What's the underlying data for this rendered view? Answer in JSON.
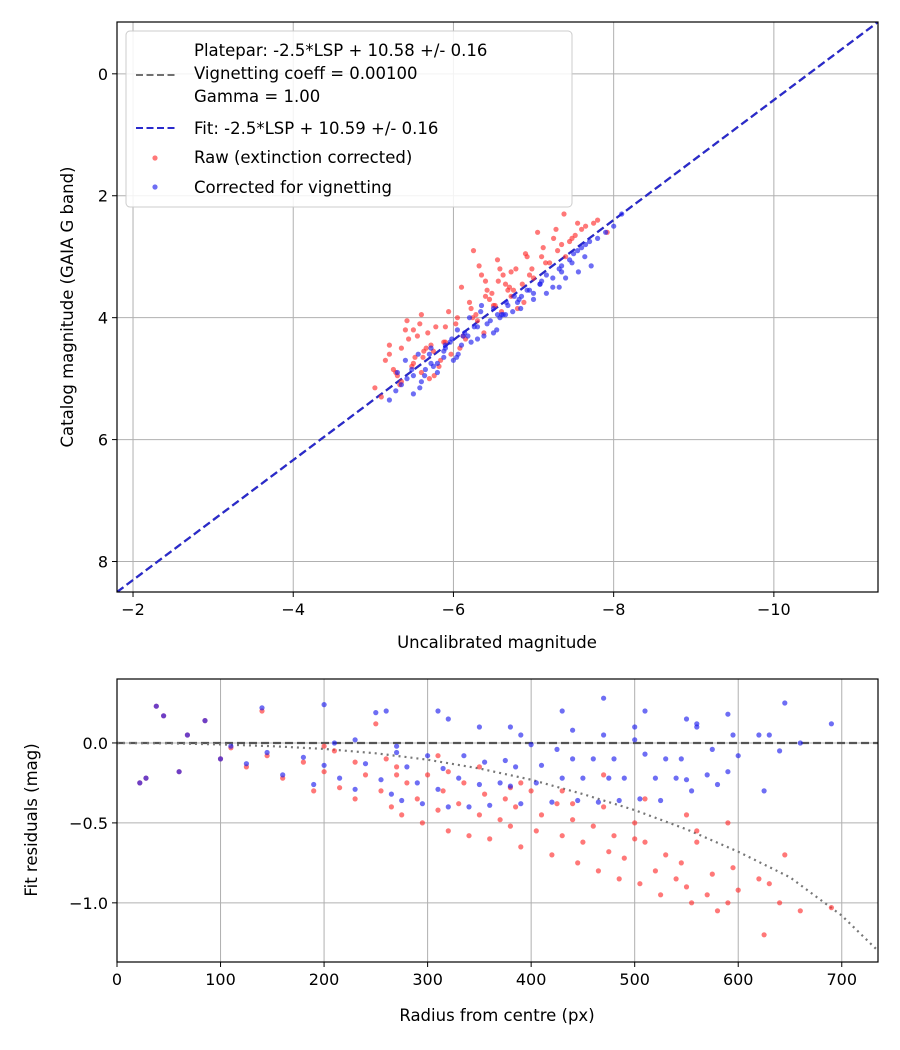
{
  "chart_data": [
    {
      "type": "scatter",
      "xlabel": "Uncalibrated magnitude",
      "ylabel": "Catalog magnitude (GAIA G band)",
      "xlim": [
        -1.8,
        -11.3
      ],
      "ylim": [
        8.5,
        -0.85
      ],
      "x_ticks": [
        -2,
        -4,
        -6,
        -8,
        -10
      ],
      "y_ticks": [
        0,
        2,
        4,
        6,
        8
      ],
      "x_tick_labels": [
        "−2",
        "−4",
        "−6",
        "−8",
        "−10"
      ],
      "y_tick_labels": [
        "0",
        "2",
        "4",
        "6",
        "8"
      ],
      "grid": true,
      "legend_position": "upper-left",
      "legend": [
        "Platepar: -2.5*LSP + 10.58 +/- 0.16",
        "Vignetting coeff = 0.00100",
        "Gamma = 1.00",
        "Fit: -2.5*LSP + 10.59 +/- 0.16",
        "Raw (extinction corrected)",
        "Corrected for vignetting"
      ],
      "lines": [
        {
          "name": "Platepar",
          "style": "dashed",
          "color": "#707070",
          "x": [
            -1.8,
            -11.3
          ],
          "y": [
            8.5,
            -0.85
          ]
        },
        {
          "name": "Fit",
          "style": "dashed",
          "color": "#2a2acc",
          "x": [
            -1.8,
            -11.3
          ],
          "y": [
            8.5,
            -0.85
          ]
        }
      ],
      "series": [
        {
          "name": "Raw (extinction corrected)",
          "color": "#ff3030",
          "x": [
            -5.02,
            -5.1,
            -5.2,
            -5.28,
            -5.35,
            -5.4,
            -5.5,
            -5.58,
            -5.63,
            -5.7,
            -5.2,
            -5.25,
            -5.33,
            -5.44,
            -5.52,
            -5.6,
            -5.68,
            -5.75,
            -5.82,
            -5.9,
            -5.15,
            -5.3,
            -5.42,
            -5.55,
            -5.66,
            -5.78,
            -5.88,
            -5.97,
            -6.05,
            -6.12,
            -5.5,
            -5.6,
            -5.72,
            -5.84,
            -5.94,
            -6.03,
            -6.15,
            -6.22,
            -6.3,
            -6.38,
            -6.1,
            -6.2,
            -6.28,
            -6.35,
            -6.42,
            -6.5,
            -6.58,
            -6.65,
            -6.72,
            -6.8,
            -6.25,
            -6.32,
            -6.4,
            -6.48,
            -6.55,
            -6.62,
            -6.7,
            -6.78,
            -6.86,
            -6.92,
            -6.9,
            -6.98,
            -7.05,
            -7.12,
            -7.2,
            -7.28,
            -7.35,
            -7.4,
            -7.48,
            -7.55,
            -6.45,
            -6.6,
            -6.75,
            -6.88,
            -7.0,
            -7.15,
            -7.3,
            -7.45,
            -7.6,
            -7.75,
            -5.35,
            -5.48,
            -5.62,
            -5.76,
            -5.9,
            -6.08,
            -6.24,
            -6.4,
            -6.56,
            -6.72,
            -7.38,
            -7.52,
            -7.65,
            -7.8,
            -7.92,
            -7.1,
            -7.25,
            -6.95,
            -6.68,
            -6.52
          ],
          "y": [
            5.15,
            5.3,
            4.6,
            4.9,
            4.5,
            4.2,
            4.75,
            4.1,
            4.55,
            5.0,
            4.45,
            4.85,
            5.1,
            4.35,
            4.65,
            4.9,
            4.25,
            4.55,
            4.8,
            4.4,
            4.7,
            4.95,
            4.05,
            4.3,
            4.5,
            4.15,
            4.4,
            4.6,
            4.0,
            4.3,
            4.2,
            3.95,
            4.45,
            4.7,
            3.9,
            4.1,
            4.35,
            3.85,
            4.05,
            4.25,
            3.5,
            3.75,
            3.95,
            3.3,
            3.55,
            3.8,
            3.2,
            3.45,
            3.65,
            3.85,
            2.9,
            3.15,
            3.4,
            3.6,
            3.05,
            3.3,
            3.5,
            3.2,
            3.45,
            3.0,
            2.95,
            3.2,
            2.6,
            2.85,
            3.1,
            2.55,
            2.8,
            3.0,
            2.7,
            2.45,
            3.7,
            3.9,
            3.55,
            3.75,
            3.35,
            3.1,
            2.9,
            2.75,
            2.55,
            2.45,
            5.05,
            4.8,
            4.65,
            4.95,
            4.15,
            4.5,
            4.0,
            3.65,
            3.4,
            3.25,
            2.3,
            2.65,
            2.5,
            2.4,
            2.6,
            3.0,
            2.7,
            3.3,
            3.55,
            3.8
          ]
        },
        {
          "name": "Corrected for vignetting",
          "color": "#2020ee",
          "x": [
            -5.2,
            -5.28,
            -5.35,
            -5.42,
            -5.5,
            -5.58,
            -5.65,
            -5.72,
            -5.8,
            -5.88,
            -5.4,
            -5.48,
            -5.56,
            -5.64,
            -5.72,
            -5.8,
            -5.88,
            -5.96,
            -6.04,
            -6.12,
            -5.9,
            -5.98,
            -6.06,
            -6.14,
            -6.22,
            -6.3,
            -6.38,
            -6.46,
            -6.54,
            -6.62,
            -6.1,
            -6.18,
            -6.26,
            -6.34,
            -6.42,
            -6.5,
            -6.58,
            -6.66,
            -6.74,
            -6.82,
            -6.6,
            -6.68,
            -6.76,
            -6.84,
            -6.92,
            -7.0,
            -7.08,
            -7.16,
            -7.24,
            -7.32,
            -7.0,
            -7.08,
            -7.16,
            -7.24,
            -7.32,
            -7.4,
            -7.48,
            -7.56,
            -7.64,
            -7.72,
            -7.5,
            -7.6,
            -7.7,
            -7.8,
            -7.9,
            -8.0,
            -8.1,
            -7.35,
            -7.45,
            -7.55,
            -5.6,
            -5.75,
            -5.9,
            -6.05,
            -6.2,
            -6.35,
            -6.5,
            -6.65,
            -6.8,
            -6.95,
            -5.3,
            -5.5,
            -5.7,
            -6.0,
            -6.3,
            -6.55,
            -6.85,
            -7.1,
            -7.35,
            -7.65
          ],
          "y": [
            5.35,
            5.2,
            5.1,
            5.0,
            4.95,
            5.15,
            4.85,
            4.75,
            4.9,
            4.65,
            4.7,
            4.85,
            4.6,
            4.95,
            4.5,
            4.75,
            4.55,
            4.4,
            4.65,
            4.3,
            4.5,
            4.35,
            4.6,
            4.25,
            4.4,
            4.15,
            4.3,
            4.05,
            4.2,
            3.95,
            4.45,
            4.3,
            4.15,
            3.9,
            4.1,
            3.85,
            4.0,
            3.75,
            3.9,
            3.7,
            3.95,
            3.8,
            3.65,
            3.85,
            3.55,
            3.7,
            3.45,
            3.6,
            3.35,
            3.5,
            3.6,
            3.45,
            3.3,
            3.5,
            3.2,
            3.35,
            3.1,
            3.25,
            3.0,
            3.15,
            2.95,
            2.85,
            2.75,
            2.7,
            2.6,
            2.5,
            2.3,
            3.25,
            3.05,
            2.9,
            5.05,
            4.8,
            4.45,
            4.2,
            4.0,
            3.8,
            4.25,
            3.95,
            3.75,
            3.55,
            4.9,
            5.25,
            4.6,
            4.7,
            4.35,
            3.95,
            3.65,
            3.4,
            3.15,
            2.8
          ]
        }
      ]
    },
    {
      "type": "scatter",
      "xlabel": "Radius from centre (px)",
      "ylabel": "Fit residuals (mag)",
      "xlim": [
        0,
        735
      ],
      "ylim": [
        -1.37,
        0.4
      ],
      "x_ticks": [
        0,
        100,
        200,
        300,
        400,
        500,
        600,
        700
      ],
      "y_ticks": [
        0.0,
        -0.5,
        -1.0
      ],
      "x_tick_labels": [
        "0",
        "100",
        "200",
        "300",
        "400",
        "500",
        "600",
        "700"
      ],
      "y_tick_labels": [
        "0.0",
        "−0.5",
        "−1.0"
      ],
      "grid": true,
      "lines": [
        {
          "name": "zero",
          "style": "dashed",
          "color": "#555555",
          "x": [
            0,
            735
          ],
          "y": [
            0,
            0
          ]
        },
        {
          "name": "vignetting model",
          "style": "dotted",
          "color": "#777777",
          "x": [
            0,
            50,
            100,
            150,
            200,
            250,
            300,
            350,
            400,
            450,
            500,
            550,
            600,
            650,
            700,
            735
          ],
          "y": [
            0.0,
            -0.002,
            -0.009,
            -0.02,
            -0.037,
            -0.065,
            -0.105,
            -0.16,
            -0.23,
            -0.32,
            -0.42,
            -0.54,
            -0.68,
            -0.84,
            -1.08,
            -1.3
          ]
        }
      ],
      "series": [
        {
          "name": "Raw (extinction corrected)",
          "color": "#ff3030",
          "x": [
            22,
            28,
            38,
            45,
            60,
            68,
            85,
            100,
            110,
            125,
            140,
            145,
            160,
            180,
            190,
            200,
            210,
            215,
            230,
            240,
            250,
            255,
            265,
            270,
            275,
            280,
            290,
            295,
            300,
            310,
            315,
            320,
            330,
            335,
            340,
            350,
            355,
            360,
            370,
            375,
            380,
            385,
            390,
            400,
            405,
            410,
            420,
            425,
            430,
            440,
            445,
            450,
            460,
            465,
            470,
            475,
            480,
            485,
            490,
            500,
            505,
            510,
            520,
            525,
            530,
            540,
            545,
            550,
            555,
            560,
            570,
            575,
            580,
            590,
            595,
            600,
            625,
            630,
            640,
            645,
            660,
            690,
            230,
            270,
            310,
            350,
            390,
            430,
            470,
            510,
            550,
            590,
            200,
            260,
            320,
            380,
            440,
            500,
            560,
            620
          ],
          "y": [
            -0.25,
            -0.22,
            0.23,
            0.17,
            -0.18,
            0.05,
            0.14,
            -0.1,
            -0.03,
            -0.15,
            0.2,
            -0.08,
            -0.22,
            -0.12,
            -0.3,
            -0.18,
            -0.05,
            -0.28,
            -0.35,
            -0.2,
            0.12,
            -0.3,
            -0.4,
            -0.15,
            -0.45,
            -0.25,
            -0.35,
            -0.5,
            -0.2,
            -0.42,
            -0.3,
            -0.55,
            -0.38,
            -0.25,
            -0.58,
            -0.45,
            -0.32,
            -0.6,
            -0.48,
            -0.35,
            -0.52,
            -0.4,
            -0.65,
            -0.3,
            -0.55,
            -0.45,
            -0.7,
            -0.38,
            -0.58,
            -0.48,
            -0.75,
            -0.62,
            -0.52,
            -0.8,
            -0.4,
            -0.68,
            -0.58,
            -0.85,
            -0.72,
            -0.5,
            -0.88,
            -0.62,
            -0.8,
            -0.95,
            -0.7,
            -0.85,
            -0.75,
            -0.9,
            -1.0,
            -0.62,
            -0.95,
            -0.82,
            -1.05,
            -1.0,
            -0.78,
            -0.92,
            -1.2,
            -0.88,
            -1.0,
            -0.7,
            -1.05,
            -1.03,
            -0.12,
            -0.2,
            -0.08,
            -0.15,
            -0.25,
            -0.3,
            -0.2,
            -0.35,
            -0.45,
            -0.5,
            -0.02,
            -0.1,
            -0.18,
            -0.28,
            -0.38,
            -0.6,
            -0.55,
            -0.85
          ]
        },
        {
          "name": "Corrected for vignetting",
          "color": "#2020ee",
          "x": [
            22,
            28,
            38,
            45,
            60,
            68,
            85,
            100,
            110,
            125,
            140,
            145,
            160,
            180,
            190,
            200,
            210,
            215,
            230,
            240,
            250,
            255,
            265,
            270,
            275,
            280,
            290,
            295,
            300,
            310,
            315,
            320,
            330,
            335,
            340,
            350,
            355,
            360,
            370,
            375,
            380,
            385,
            390,
            400,
            405,
            410,
            420,
            425,
            430,
            440,
            445,
            450,
            460,
            465,
            470,
            475,
            480,
            485,
            490,
            500,
            505,
            510,
            520,
            525,
            530,
            540,
            545,
            550,
            555,
            560,
            570,
            575,
            580,
            590,
            595,
            600,
            625,
            630,
            640,
            645,
            660,
            690,
            230,
            270,
            310,
            350,
            390,
            430,
            470,
            510,
            550,
            590,
            200,
            260,
            320,
            380,
            440,
            500,
            560,
            620
          ],
          "y": [
            -0.25,
            -0.22,
            0.23,
            0.17,
            -0.18,
            0.05,
            0.14,
            -0.1,
            -0.02,
            -0.13,
            0.22,
            -0.06,
            -0.2,
            -0.09,
            -0.26,
            -0.14,
            0.0,
            -0.22,
            -0.29,
            -0.13,
            0.19,
            -0.23,
            -0.32,
            -0.06,
            -0.36,
            -0.15,
            -0.25,
            -0.38,
            -0.08,
            -0.29,
            -0.16,
            -0.4,
            -0.22,
            -0.08,
            -0.4,
            -0.26,
            -0.12,
            -0.39,
            -0.25,
            -0.11,
            -0.27,
            -0.15,
            -0.38,
            -0.01,
            -0.25,
            -0.14,
            -0.37,
            -0.04,
            -0.22,
            -0.1,
            -0.36,
            -0.22,
            -0.1,
            -0.37,
            0.05,
            -0.22,
            -0.1,
            -0.36,
            -0.22,
            0.02,
            -0.35,
            -0.07,
            -0.22,
            -0.36,
            -0.1,
            -0.22,
            -0.1,
            -0.23,
            -0.3,
            0.1,
            -0.2,
            -0.04,
            -0.26,
            -0.18,
            0.05,
            -0.08,
            -0.3,
            0.05,
            -0.05,
            0.25,
            0.0,
            0.12,
            0.02,
            -0.02,
            0.2,
            0.1,
            0.05,
            0.2,
            0.28,
            0.2,
            0.15,
            0.18,
            0.24,
            0.2,
            0.15,
            0.1,
            0.08,
            0.1,
            0.12,
            0.05
          ]
        }
      ]
    }
  ]
}
